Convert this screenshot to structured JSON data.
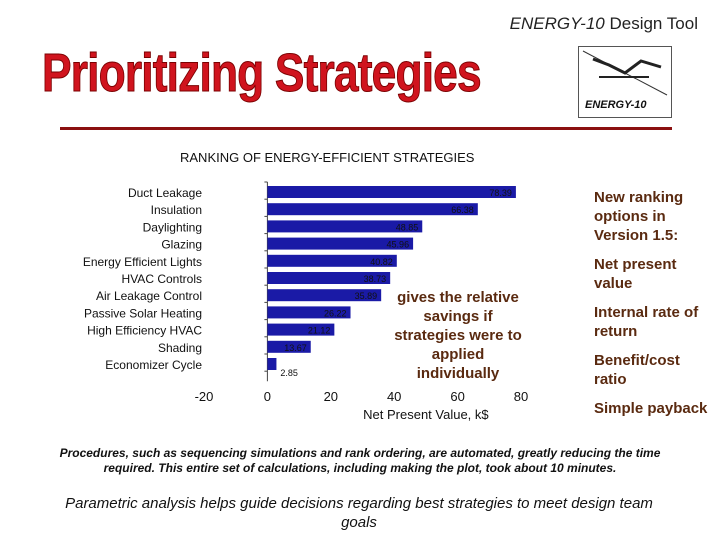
{
  "header": {
    "tool_brand": "ENERGY-10",
    "tool_suffix": " Design Tool",
    "slide_title": "Prioritizing Strategies",
    "logo_text": "ENERGY-10"
  },
  "chart_heading": "RANKING OF ENERGY-EFFICIENT STRATEGIES",
  "chart_data": {
    "type": "bar",
    "orientation": "horizontal",
    "title": "RANKING OF ENERGY-EFFICIENT STRATEGIES",
    "xlabel": "Net Present Value,  k$",
    "ylabel": "",
    "xlim": [
      -20,
      80
    ],
    "xticks": [
      -20,
      0,
      20,
      40,
      60,
      80
    ],
    "categories": [
      "Duct Leakage",
      "Insulation",
      "Daylighting",
      "Glazing",
      "Energy Efficient Lights",
      "HVAC Controls",
      "Air Leakage Control",
      "Passive Solar Heating",
      "High Efficiency HVAC",
      "Shading",
      "Economizer Cycle"
    ],
    "values": [
      78.39,
      66.38,
      48.85,
      45.96,
      40.82,
      38.73,
      35.89,
      26.22,
      21.12,
      13.67,
      2.85
    ],
    "data_labels": [
      "78.39",
      "66.38",
      "48.85",
      "45.96",
      "40.82",
      "38.73",
      "35.89",
      "26.22",
      "21.12",
      "13.67",
      "2.85"
    ],
    "bar_color": "#1a1aa6",
    "grid": false
  },
  "annotation": "gives the relative savings if strategies were to applied individually",
  "options": {
    "intro": "New ranking options in Version 1.5:",
    "items": [
      "Net present value",
      "Internal rate of return",
      "Benefit/cost ratio",
      "Simple payback"
    ]
  },
  "footnote": "Procedures, such as sequencing simulations and rank ordering, are automated, greatly reducing the time required. This entire set of calculations, including making the plot, took about 10 minutes.",
  "conclusion": "Parametric analysis helps guide decisions regarding best strategies to meet design team goals"
}
